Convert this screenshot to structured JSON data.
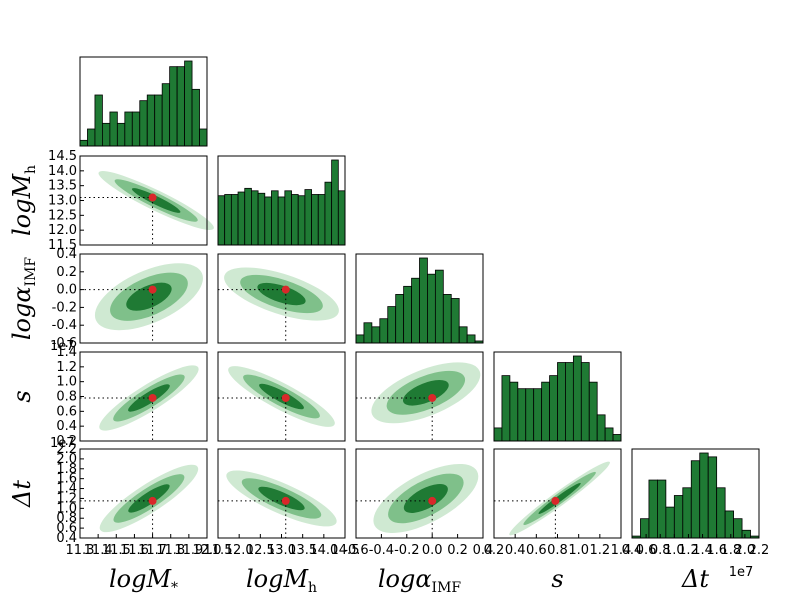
{
  "chart_data": {
    "type": "corner",
    "colors": {
      "bar_fill": "#1f7a34",
      "bar_edge": "#000000",
      "contour_outer": "#cfe9d2",
      "contour_mid": "#7fc08a",
      "contour_inner": "#1f7a34",
      "truth_marker": "#d9282a",
      "truth_line": "#000000"
    },
    "parameters": [
      {
        "id": "logMs",
        "label": "logM",
        "sub": "*",
        "range": [
          11.3,
          12.0
        ],
        "ticks": [
          "11.3",
          "11.4",
          "11.5",
          "11.6",
          "11.7",
          "11.8",
          "11.9",
          "12.0"
        ],
        "truth": 11.7,
        "hist": [
          1,
          3,
          9,
          4,
          6,
          4,
          6,
          6,
          8,
          9,
          9,
          11,
          14,
          14,
          15,
          10,
          3
        ],
        "offset_text": ""
      },
      {
        "id": "logMh",
        "label": "logM",
        "sub": "h",
        "range": [
          11.5,
          14.5
        ],
        "ticks": [
          "11.5",
          "12.0",
          "12.5",
          "13.0",
          "13.5",
          "14.0",
          "14.5"
        ],
        "truth": 13.1,
        "hist": [
          40,
          41,
          41,
          43,
          46,
          44,
          42,
          39,
          44,
          39,
          44,
          41,
          40,
          45,
          41,
          41,
          51,
          69,
          44
        ],
        "offset_text": ""
      },
      {
        "id": "logaIMF",
        "label": "logα",
        "sub": "IMF",
        "range": [
          -0.6,
          0.4
        ],
        "ticks": [
          "-0.6",
          "-0.4",
          "-0.2",
          "0.0",
          "0.2",
          "0.4"
        ],
        "truth": 0.0,
        "hist": [
          2,
          5,
          4,
          6,
          9,
          12,
          14,
          16,
          21,
          17,
          18,
          12,
          11,
          4,
          2,
          0.5
        ],
        "offset_text": ""
      },
      {
        "id": "s",
        "label": "s",
        "sub": "",
        "range": [
          0.2,
          1.4
        ],
        "ticks": [
          "0.2",
          "0.4",
          "0.6",
          "0.8",
          "1.0",
          "1.2",
          "1.4"
        ],
        "truth": 0.78,
        "hist": [
          2,
          10,
          9,
          8,
          8,
          8,
          9,
          10,
          12,
          12,
          13,
          12,
          9,
          4,
          2,
          1
        ],
        "offset_text": "1e7"
      },
      {
        "id": "dt",
        "label": "Δt",
        "sub": "",
        "range": [
          0.4,
          2.2
        ],
        "ticks": [
          "0.4",
          "0.6",
          "0.8",
          "1.0",
          "1.2",
          "1.4",
          "1.6",
          "1.8",
          "2.0",
          "2.2"
        ],
        "truth": 1.15,
        "hist": [
          0.5,
          5,
          15,
          15,
          8,
          11,
          13,
          20,
          22,
          21,
          13,
          7,
          5,
          2,
          0.5
        ],
        "offset_text": "1e7"
      }
    ]
  }
}
